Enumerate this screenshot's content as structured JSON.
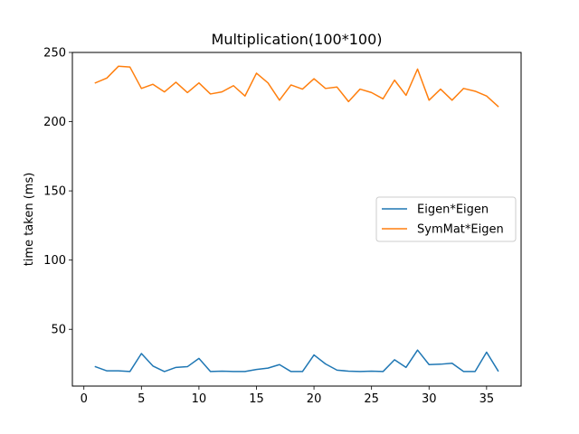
{
  "chart_data": {
    "type": "line",
    "title": "Multiplication(100*100)",
    "xlabel": "",
    "ylabel": "time taken (ms)",
    "xlim": [
      -1,
      38
    ],
    "ylim": [
      9,
      250
    ],
    "xticks": [
      0,
      5,
      10,
      15,
      20,
      25,
      30,
      35
    ],
    "yticks": [
      50,
      100,
      150,
      200,
      250
    ],
    "grid": false,
    "legend_position": "center-right",
    "x": [
      1,
      2,
      3,
      4,
      5,
      6,
      7,
      8,
      9,
      10,
      11,
      12,
      13,
      14,
      15,
      16,
      17,
      18,
      19,
      20,
      21,
      22,
      23,
      24,
      25,
      26,
      27,
      28,
      29,
      30,
      31,
      32,
      33,
      34,
      35,
      36
    ],
    "series": [
      {
        "name": "Eigen*Eigen",
        "color": "#1f77b4",
        "values": [
          23,
          20,
          20,
          19.5,
          32.5,
          23.5,
          19.5,
          22.5,
          23,
          29,
          19.5,
          19.8,
          19.5,
          19.5,
          21,
          22,
          24.5,
          19.5,
          19.5,
          31.5,
          25,
          20.5,
          19.8,
          19.5,
          19.8,
          19.5,
          28,
          22.5,
          35,
          24.5,
          24.8,
          25.5,
          19.5,
          19.5,
          33.5,
          20
        ]
      },
      {
        "name": "SymMat*Eigen",
        "color": "#ff7f0e",
        "values": [
          228,
          231.5,
          240,
          239.5,
          224,
          227,
          221.5,
          228.5,
          221,
          228,
          220,
          221.5,
          226,
          218.5,
          235,
          228,
          215.5,
          226.5,
          223.5,
          231,
          224,
          225,
          214.5,
          223.5,
          221,
          216.5,
          230,
          219,
          238,
          215.5,
          223.5,
          215.5,
          224,
          222,
          218.5,
          211
        ]
      }
    ]
  }
}
